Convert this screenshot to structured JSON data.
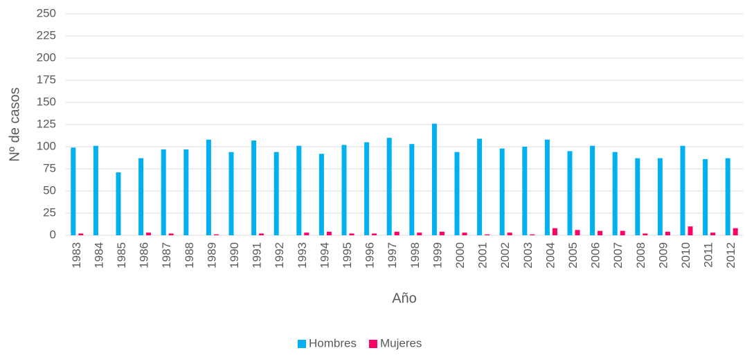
{
  "chart_data": {
    "type": "bar",
    "x_label": "Año",
    "y_label": "Nº de casos",
    "categories": [
      "1983",
      "1984",
      "1985",
      "1986",
      "1987",
      "1988",
      "1989",
      "1990",
      "1991",
      "1992",
      "1993",
      "1994",
      "1995",
      "1996",
      "1997",
      "1998",
      "1999",
      "2000",
      "2001",
      "2002",
      "2003",
      "2004",
      "2005",
      "2006",
      "2007",
      "2008",
      "2009",
      "2010",
      "2011",
      "2012"
    ],
    "series": [
      {
        "name": "Hombres",
        "color": "#00b0f0",
        "values": [
          99,
          101,
          71,
          87,
          97,
          97,
          108,
          94,
          107,
          94,
          101,
          92,
          102,
          105,
          110,
          103,
          126,
          94,
          109,
          98,
          100,
          108,
          95,
          101,
          94,
          87,
          87,
          101,
          86,
          87
        ]
      },
      {
        "name": "Mujeres",
        "color": "#ff0066",
        "values": [
          2,
          0,
          0,
          3,
          2,
          0,
          1,
          0,
          2,
          0,
          3,
          4,
          2,
          2,
          4,
          3,
          4,
          3,
          1,
          3,
          1,
          8,
          6,
          5,
          5,
          2,
          4,
          10,
          3,
          8
        ]
      }
    ],
    "ylim": [
      0,
      250
    ],
    "yticks": [
      0,
      25,
      50,
      75,
      100,
      125,
      150,
      175,
      200,
      225,
      250
    ],
    "grid": true,
    "legend": "bottom"
  }
}
